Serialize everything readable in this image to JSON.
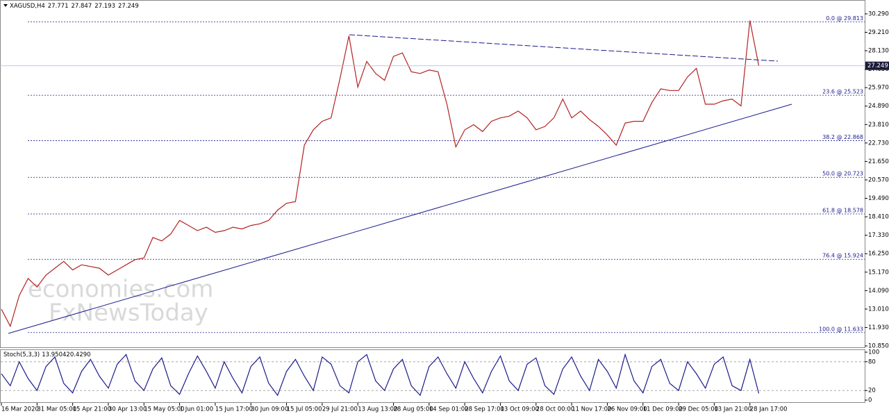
{
  "chart_data": [
    {
      "type": "line",
      "symbol": "XAGUSD,H4",
      "ohlc": [
        27.771,
        27.847,
        27.193,
        27.249
      ],
      "color": "#b22222",
      "categories": [
        "16 Mar 2020",
        null,
        null,
        null,
        "31 Mar 05:00",
        null,
        null,
        null,
        "15 Apr 21:00",
        null,
        null,
        null,
        "30 Apr 13:00",
        null,
        null,
        null,
        "15 May 05:00",
        null,
        null,
        null,
        "1 Jun 01:00",
        null,
        null,
        null,
        "15 Jun 17:00",
        null,
        null,
        null,
        "30 Jun 09:00",
        null,
        null,
        null,
        "15 Jul 05:00",
        null,
        null,
        null,
        "29 Jul 21:00",
        null,
        null,
        null,
        "13 Aug 13:00",
        null,
        null,
        null,
        "28 Aug 05:00",
        null,
        null,
        null,
        "14 Sep 01:00",
        null,
        null,
        null,
        "28 Sep 17:00",
        null,
        null,
        null,
        "13 Oct 09:00",
        null,
        null,
        null,
        "28 Oct 00:00",
        null,
        null,
        null,
        "11 Nov 17:00",
        null,
        null,
        null,
        "26 Nov 09:00",
        null,
        null,
        null,
        "11 Dec 09:00",
        null,
        null,
        null,
        "29 Dec 05:00",
        null,
        null,
        null,
        "13 Jan 21:00",
        null,
        null,
        null,
        "28 Jan 17:00",
        null
      ],
      "values": [
        13.0,
        12.0,
        13.8,
        14.8,
        14.3,
        15.0,
        15.4,
        15.8,
        15.3,
        15.6,
        15.5,
        15.4,
        15.0,
        15.3,
        15.6,
        15.9,
        16.0,
        17.2,
        17.0,
        17.4,
        18.2,
        17.9,
        17.6,
        17.8,
        17.5,
        17.6,
        17.8,
        17.7,
        17.9,
        18.0,
        18.2,
        18.8,
        19.2,
        19.3,
        22.6,
        23.5,
        24.0,
        24.2,
        26.5,
        29.0,
        26.0,
        27.5,
        26.8,
        26.4,
        27.8,
        28.0,
        26.9,
        26.8,
        27.0,
        26.9,
        25.0,
        22.5,
        23.5,
        23.8,
        23.4,
        24.0,
        24.2,
        24.3,
        24.6,
        24.2,
        23.5,
        23.7,
        24.2,
        25.3,
        24.2,
        24.6,
        24.1,
        23.7,
        23.2,
        22.6,
        23.9,
        24.0,
        24.0,
        25.1,
        25.9,
        25.8,
        25.8,
        26.6,
        27.1,
        25.0,
        25.0,
        25.2,
        25.3,
        24.9,
        29.9,
        27.249
      ],
      "ylim": [
        10.77,
        30.49
      ],
      "yticks": [
        {
          "value": 30.29,
          "label": "30.290"
        },
        {
          "value": 29.21,
          "label": "29.210"
        },
        {
          "value": 28.13,
          "label": "28.130"
        },
        {
          "value": 27.05,
          "label": "27.050"
        },
        {
          "value": 25.97,
          "label": "25.970"
        },
        {
          "value": 24.89,
          "label": "24.890"
        },
        {
          "value": 23.81,
          "label": "23.810"
        },
        {
          "value": 22.73,
          "label": "22.730"
        },
        {
          "value": 21.65,
          "label": "21.650"
        },
        {
          "value": 20.57,
          "label": "20.570"
        },
        {
          "value": 19.49,
          "label": "19.490"
        },
        {
          "value": 18.41,
          "label": "18.410"
        },
        {
          "value": 17.33,
          "label": "17.330"
        },
        {
          "value": 16.25,
          "label": "16.250"
        },
        {
          "value": 15.17,
          "label": "15.170"
        },
        {
          "value": 14.09,
          "label": "14.090"
        },
        {
          "value": 13.01,
          "label": "13.010"
        },
        {
          "value": 11.93,
          "label": "11.930"
        },
        {
          "value": 10.85,
          "label": "10.850"
        }
      ],
      "levels": [
        {
          "value": 29.813,
          "label": "0.0 @ 29.813"
        },
        {
          "value": 25.523,
          "label": "23.6 @ 25.523"
        },
        {
          "value": 22.868,
          "label": "38.2 @ 22.868"
        },
        {
          "value": 20.723,
          "label": "50.0 @ 20.723"
        },
        {
          "value": 18.578,
          "label": "61.8 @ 18.578"
        },
        {
          "value": 15.924,
          "label": "76.4 @ 15.924"
        },
        {
          "value": 11.633,
          "label": "100.0 @ 11.633"
        }
      ],
      "last_price": 27.249,
      "watermark": [
        "economies.com",
        "FxNewsToday"
      ]
    },
    {
      "type": "line",
      "title": "Stoch(5,3,3)",
      "last_values": [
        13.9504,
        {
          "value": 20.429,
          "label": "20.4290"
        }
      ],
      "color": "#1a1a8c",
      "values": [
        55,
        30,
        80,
        45,
        20,
        70,
        90,
        35,
        15,
        60,
        85,
        50,
        25,
        75,
        95,
        40,
        20,
        65,
        88,
        30,
        12,
        55,
        92,
        60,
        25,
        80,
        45,
        15,
        70,
        90,
        35,
        10,
        60,
        85,
        50,
        20,
        90,
        75,
        30,
        15,
        80,
        95,
        40,
        20,
        65,
        85,
        30,
        10,
        70,
        90,
        55,
        25,
        80,
        45,
        15,
        60,
        92,
        40,
        20,
        75,
        88,
        30,
        12,
        65,
        90,
        50,
        20,
        85,
        60,
        25,
        95,
        40,
        15,
        70,
        85,
        35,
        20,
        80,
        55,
        25,
        75,
        90,
        30,
        20,
        85,
        13.9504
      ],
      "ylim": [
        0,
        100
      ],
      "yticks": [
        0,
        20,
        80,
        100
      ],
      "levels": [
        20,
        80
      ]
    }
  ]
}
